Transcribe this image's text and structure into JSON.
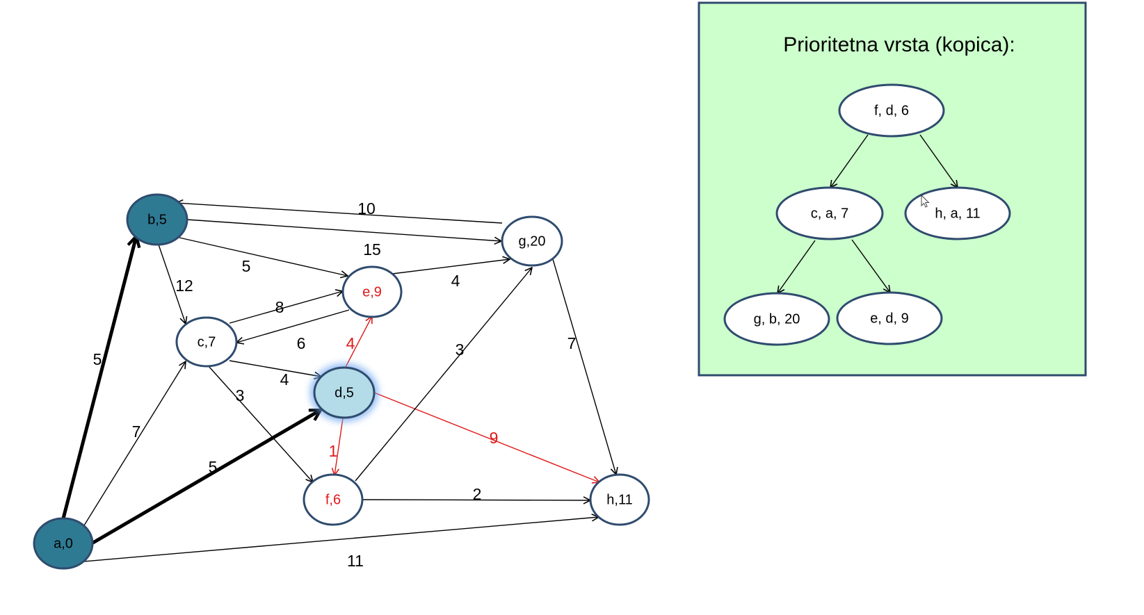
{
  "colors": {
    "node_stroke": "#2f4b6e",
    "visited_fill": "#2f7a93",
    "current_fill": "#b3dbe8",
    "current_glow": "#6fa8ee",
    "black": "#000000",
    "red": "#e01818",
    "panel_fill": "#ccffcc",
    "panel_stroke": "#2f4b6e"
  },
  "graph": {
    "nodes": [
      {
        "id": "b",
        "label": "b,5",
        "state": "visited",
        "text_color": "black"
      },
      {
        "id": "g",
        "label": "g,20",
        "state": "normal",
        "text_color": "black"
      },
      {
        "id": "e",
        "label": "e,9",
        "state": "normal",
        "text_color": "red"
      },
      {
        "id": "c",
        "label": "c,7",
        "state": "normal",
        "text_color": "black"
      },
      {
        "id": "d",
        "label": "d,5",
        "state": "current",
        "text_color": "black"
      },
      {
        "id": "f",
        "label": "f,6",
        "state": "normal",
        "text_color": "red"
      },
      {
        "id": "h",
        "label": "h,11",
        "state": "normal",
        "text_color": "black"
      },
      {
        "id": "a",
        "label": "a,0",
        "state": "visited",
        "text_color": "black"
      }
    ],
    "edges": [
      {
        "from": "g",
        "to": "b",
        "weight": "10",
        "style": "normal",
        "color": "black"
      },
      {
        "from": "b",
        "to": "g",
        "weight": "15",
        "style": "normal",
        "color": "black"
      },
      {
        "from": "b",
        "to": "e",
        "weight": "5",
        "style": "normal",
        "color": "black"
      },
      {
        "from": "b",
        "to": "c",
        "weight": "12",
        "style": "normal",
        "color": "black"
      },
      {
        "from": "e",
        "to": "g",
        "weight": "4",
        "style": "normal",
        "color": "black"
      },
      {
        "from": "c",
        "to": "e",
        "weight": "8",
        "style": "normal",
        "color": "black"
      },
      {
        "from": "e",
        "to": "c",
        "weight": "6",
        "style": "normal",
        "color": "black"
      },
      {
        "from": "c",
        "to": "d",
        "weight": "4",
        "style": "normal",
        "color": "black"
      },
      {
        "from": "c",
        "to": "f",
        "weight": "3",
        "style": "normal",
        "color": "black"
      },
      {
        "from": "d",
        "to": "e",
        "weight": "4",
        "style": "normal",
        "color": "red"
      },
      {
        "from": "d",
        "to": "f",
        "weight": "1",
        "style": "normal",
        "color": "red"
      },
      {
        "from": "d",
        "to": "h",
        "weight": "9",
        "style": "normal",
        "color": "red"
      },
      {
        "from": "f",
        "to": "g",
        "weight": "3",
        "style": "normal",
        "color": "black"
      },
      {
        "from": "f",
        "to": "h",
        "weight": "2",
        "style": "normal",
        "color": "black"
      },
      {
        "from": "g",
        "to": "h",
        "weight": "7",
        "style": "normal",
        "color": "black"
      },
      {
        "from": "a",
        "to": "b",
        "weight": "5",
        "style": "bold",
        "color": "black"
      },
      {
        "from": "a",
        "to": "c",
        "weight": "7",
        "style": "normal",
        "color": "black"
      },
      {
        "from": "a",
        "to": "d",
        "weight": "5",
        "style": "bold",
        "color": "black"
      },
      {
        "from": "a",
        "to": "h",
        "weight": "11",
        "style": "normal",
        "color": "black"
      }
    ]
  },
  "heap_panel": {
    "title": "Prioritetna vrsta (kopica):",
    "nodes": [
      {
        "id": "h0",
        "label": "f, d, 6"
      },
      {
        "id": "h1",
        "label": "c, a, 7"
      },
      {
        "id": "h2",
        "label": "h, a, 11"
      },
      {
        "id": "h3",
        "label": "g, b, 20"
      },
      {
        "id": "h4",
        "label": "e, d, 9"
      }
    ],
    "edges": [
      {
        "from": "h0",
        "to": "h1"
      },
      {
        "from": "h0",
        "to": "h2"
      },
      {
        "from": "h1",
        "to": "h3"
      },
      {
        "from": "h1",
        "to": "h4"
      }
    ]
  }
}
